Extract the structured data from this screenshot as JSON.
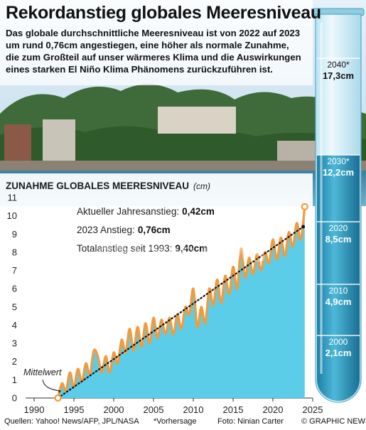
{
  "title": "Rekordanstieg globales Meeresniveau",
  "intro": "Das globale durchschnittliche Meeresniveau ist von 2022 auf 2023 um rund 0,76cm angestiegen, eine höher als normale Zunahme, die zum Großteil auf unser wärmeres Klima und die Auswirkungen eines starken El Niño Klima Phänomens zurückzuführen ist.",
  "chart_heading": "ZUNAHME GLOBALES MEERESNIVEAU",
  "chart_unit": "(cm)",
  "stats": [
    {
      "label": "Aktueller Jahresanstieg:",
      "value": "0,42cm"
    },
    {
      "label": "2023 Anstieg:",
      "value": "0,76cm"
    },
    {
      "label": "Totalanstieg seit 1993:",
      "value": "9,40cm"
    }
  ],
  "mittelwert_label": "Mittelwert",
  "watermark": "GRAPHIC NEWS",
  "footer": {
    "sources": "Quellen: Yahoo! News/AFP, JPL/NASA",
    "forecast_note": "*Vorhersage",
    "photo": "Foto: Ninian Carter",
    "credit": "© GRAPHIC NEWS"
  },
  "tube": [
    {
      "year": "2040*",
      "value": "17,3cm",
      "level": 17.3
    },
    {
      "year": "2030*",
      "value": "12,2cm",
      "level": 12.2
    },
    {
      "year": "2020",
      "value": "8,5cm",
      "level": 8.5
    },
    {
      "year": "2010",
      "value": "4,9cm",
      "level": 4.9
    },
    {
      "year": "2000",
      "value": "2,1cm",
      "level": 2.1
    }
  ],
  "colors": {
    "area": "#5bcde8",
    "line": "#f39a3c",
    "trend": "#111111",
    "tube_water": "#3ba6c7",
    "sky": "#cfe4f2",
    "sea": "#2f6e8c"
  },
  "chart_data": {
    "type": "area",
    "title": "ZUNAHME GLOBALES MEERESNIVEAU",
    "ylabel": "(cm)",
    "xlim": [
      1990,
      2025
    ],
    "ylim": [
      0,
      11
    ],
    "x_ticks": [
      1990,
      1995,
      2000,
      2005,
      2010,
      2015,
      2020,
      2025
    ],
    "y_ticks": [
      0,
      1,
      2,
      3,
      4,
      5,
      6,
      7,
      8,
      9,
      10,
      11
    ],
    "series": [
      {
        "name": "",
        "x": [
          1993.0,
          1993.5,
          1994.0,
          1994.5,
          1995.0,
          1995.5,
          1996.0,
          1996.5,
          1997.0,
          1997.5,
          1998.0,
          1998.5,
          1999.0,
          1999.5,
          2000.0,
          2000.5,
          2001.0,
          2001.5,
          2002.0,
          2002.5,
          2003.0,
          2003.5,
          2004.0,
          2004.5,
          2005.0,
          2005.5,
          2006.0,
          2006.5,
          2007.0,
          2007.5,
          2008.0,
          2008.5,
          2009.0,
          2009.5,
          2010.0,
          2010.5,
          2011.0,
          2011.5,
          2012.0,
          2012.5,
          2013.0,
          2013.5,
          2014.0,
          2014.5,
          2015.0,
          2015.5,
          2016.0,
          2016.5,
          2017.0,
          2017.5,
          2018.0,
          2018.5,
          2019.0,
          2019.5,
          2020.0,
          2020.5,
          2021.0,
          2021.5,
          2022.0,
          2022.5,
          2023.0,
          2023.5,
          2024.0
        ],
        "values": [
          0.0,
          0.8,
          0.4,
          1.4,
          0.6,
          1.6,
          0.9,
          1.9,
          1.3,
          2.6,
          2.3,
          1.4,
          2.3,
          1.4,
          2.5,
          1.9,
          3.2,
          2.5,
          3.8,
          2.6,
          3.9,
          2.8,
          4.1,
          3.0,
          4.4,
          3.3,
          4.3,
          3.5,
          4.4,
          3.5,
          4.6,
          3.8,
          5.0,
          4.6,
          6.0,
          3.9,
          5.0,
          4.1,
          6.0,
          5.1,
          6.5,
          5.2,
          6.7,
          5.7,
          7.2,
          6.0,
          8.2,
          6.6,
          7.7,
          6.8,
          7.9,
          7.0,
          8.0,
          7.4,
          8.7,
          7.6,
          8.8,
          7.8,
          9.1,
          8.3,
          9.6,
          8.7,
          10.5
        ]
      }
    ],
    "trend": {
      "x": [
        1993,
        2023.8
      ],
      "values": [
        0.0,
        9.4
      ]
    },
    "annotations": [
      "Mittelwert"
    ]
  }
}
